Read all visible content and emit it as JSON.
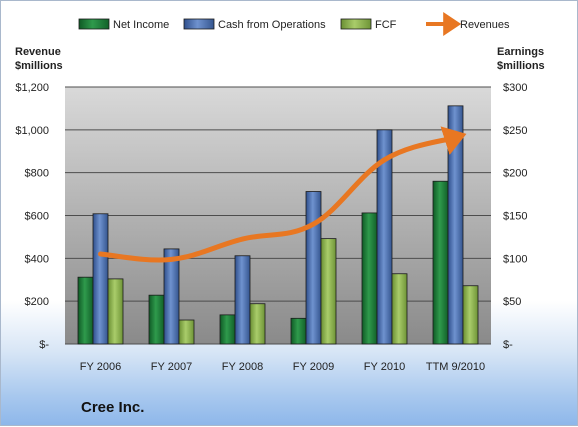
{
  "chart_data": {
    "type": "bar",
    "categories": [
      "FY 2006",
      "FY 2007",
      "FY 2008",
      "FY 2009",
      "FY 2010",
      "TTM 9/2010"
    ],
    "series": [
      {
        "name": "Net Income",
        "axis": "right",
        "color": "#1f7a3a",
        "values": [
          78,
          57,
          34,
          30,
          153,
          190
        ]
      },
      {
        "name": "Cash from Operations",
        "axis": "right",
        "color": "#4a6eb0",
        "values": [
          152,
          111,
          103,
          178,
          250,
          278
        ]
      },
      {
        "name": "FCF",
        "axis": "right",
        "color": "#8ab34a",
        "values": [
          76,
          28,
          47,
          123,
          82,
          68
        ]
      },
      {
        "name": "Revenues",
        "axis": "left",
        "type": "line",
        "color": "#e87722",
        "values": [
          420,
          395,
          490,
          560,
          860,
          965
        ]
      }
    ],
    "left_axis": {
      "title_lines": [
        "Revenue",
        "$millions"
      ],
      "range": [
        0,
        1200
      ],
      "ticks": [
        0,
        200,
        400,
        600,
        800,
        1000,
        1200
      ],
      "tick_labels": [
        "$-",
        "$200",
        "$400",
        "$600",
        "$800",
        "$1,000",
        "$1,200"
      ]
    },
    "right_axis": {
      "title_lines": [
        "Earnings",
        "$millions"
      ],
      "range": [
        0,
        300
      ],
      "ticks": [
        0,
        50,
        100,
        150,
        200,
        250,
        300
      ],
      "tick_labels": [
        "$-",
        "$50",
        "$100",
        "$150",
        "$200",
        "$250",
        "$300"
      ]
    },
    "grid": true,
    "legend_position": "top",
    "company": "Cree Inc."
  }
}
